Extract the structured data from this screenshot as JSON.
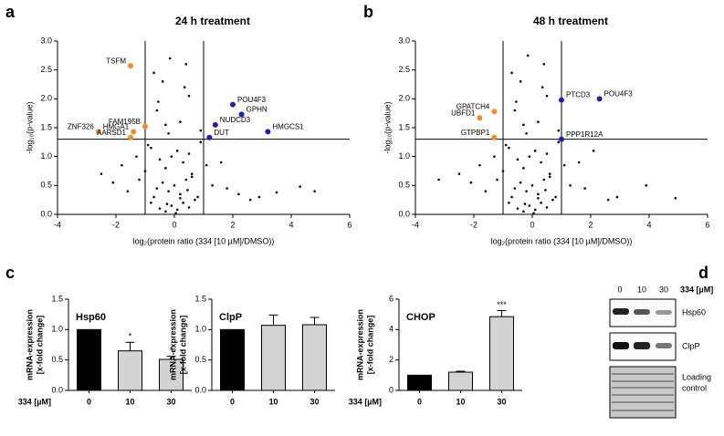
{
  "chart_data": [
    {
      "type": "scatter",
      "title": "24 h treatment",
      "xlabel": "log₂(protein ratio (334 [10 µM]/DMSO))",
      "ylabel": "-log₁₀(p-value)",
      "xlim": [
        -4,
        6
      ],
      "ylim": [
        0,
        3
      ],
      "xticks": [
        -4,
        -2,
        0,
        2,
        4,
        6
      ],
      "yticks": [
        {
          "value": 0,
          "label": "0.0"
        },
        0.5,
        {
          "value": 1,
          "label": "1.0"
        },
        1.5,
        {
          "value": 2,
          "label": "2.0"
        },
        2.5,
        {
          "value": 3,
          "label": "3.0"
        }
      ],
      "vlines": [
        -1,
        1
      ],
      "hline": 1.3,
      "series": [
        {
          "color": "#000000",
          "x": [
            -0.5,
            -0.3,
            -0.1,
            0.1,
            0.3,
            0.5,
            -0.7,
            0.7,
            -0.2,
            0.2,
            0,
            -0.4,
            0.4,
            -0.6,
            0.6,
            -0.8,
            0.8,
            -0.3,
            0.3,
            -0.1,
            0.1,
            -0.5,
            0.5,
            -1.2,
            1.3,
            -1.6,
            1.8,
            2.2,
            -2.1,
            2.6,
            3.5,
            4.3,
            4.8,
            -0.9,
            0.9,
            -0.2,
            0.2,
            -0.6,
            0.5,
            -0.4,
            0.4,
            -1.0,
            1.1,
            -0.3,
            -1.3,
            0.6,
            -0.7,
            0.35,
            -0.55,
            -0.15,
            0.05,
            -2.5,
            1.6,
            -1.8,
            2.9,
            0.9,
            -0.8,
            0.2,
            -0.25,
            0.45
          ],
          "values": [
            0.1,
            0.05,
            0.15,
            0.08,
            0.2,
            0.12,
            0.3,
            0.25,
            0.4,
            0.35,
            0.5,
            0.55,
            0.6,
            0.45,
            0.7,
            0.2,
            0.3,
            0.8,
            0.9,
            1.0,
            1.1,
            0.95,
            1.05,
            0.6,
            0.5,
            0.4,
            0.45,
            0.35,
            0.55,
            0.25,
            0.38,
            0.48,
            0.4,
            1.2,
            1.25,
            1.4,
            1.6,
            1.8,
            2.05,
            2.3,
            2.6,
            0.75,
            0.85,
            1.55,
            1.0,
            0.65,
            2.45,
            2.2,
            1.95,
            2.7,
            0.02,
            0.7,
            0.9,
            0.85,
            0.3,
            1.45,
            1.15,
            0.28,
            0.18,
            0.42
          ]
        },
        {
          "color": "#f28c28",
          "x": [
            -1.5,
            -1.0,
            -1.4,
            -2.6,
            -1.5
          ],
          "values": [
            2.57,
            1.52,
            1.43,
            1.43,
            1.33
          ],
          "labels": [
            "TSFM",
            "FAM195B",
            "HMGA1",
            "ZNF326",
            "AARSD1"
          ]
        },
        {
          "color": "#1f1fb4",
          "x": [
            2.0,
            2.3,
            1.4,
            1.2,
            3.2
          ],
          "values": [
            1.9,
            1.73,
            1.55,
            1.33,
            1.43
          ],
          "labels": [
            "POU4F3",
            "GPHN",
            "NUDCD3",
            "DUT",
            "HMGCS1"
          ]
        }
      ]
    },
    {
      "type": "scatter",
      "title": "48 h treatment",
      "xlabel": "log₂(protein ratio (334 [10 µM]/DMSO))",
      "ylabel": "-log₁₀(p-value)",
      "xlim": [
        -4,
        6
      ],
      "ylim": [
        0,
        3
      ],
      "xticks": [
        -4,
        -2,
        0,
        2,
        4,
        6
      ],
      "yticks": [
        {
          "value": 0,
          "label": "0.0"
        },
        0.5,
        {
          "value": 1,
          "label": "1.0"
        },
        1.5,
        {
          "value": 2,
          "label": "2.0"
        },
        2.5,
        {
          "value": 3,
          "label": "3.0"
        }
      ],
      "vlines": [
        -1,
        1
      ],
      "hline": 1.3,
      "series": [
        {
          "color": "#000000",
          "x": [
            -0.5,
            -0.3,
            -0.1,
            0.1,
            0.3,
            0.5,
            -0.7,
            0.7,
            -0.2,
            0.2,
            0,
            -0.4,
            0.4,
            -0.6,
            0.6,
            -0.8,
            0.8,
            -0.3,
            0.3,
            -0.1,
            0.1,
            -0.5,
            0.5,
            -1.2,
            1.3,
            -1.6,
            1.8,
            2.1,
            -2.1,
            2.6,
            3.9,
            4.9,
            -3.2,
            -0.9,
            0.9,
            -0.2,
            0.2,
            -0.6,
            0.5,
            -0.4,
            0.4,
            -1.0,
            1.1,
            -0.3,
            -1.3,
            0.6,
            -0.7,
            0.35,
            -0.55,
            -0.15,
            0.05,
            -2.5,
            1.6,
            -1.8,
            2.9,
            0.9,
            -0.8,
            0.2,
            -0.25,
            0.45
          ],
          "values": [
            0.1,
            0.05,
            0.15,
            0.08,
            0.2,
            0.12,
            0.3,
            0.25,
            0.4,
            0.35,
            0.5,
            0.55,
            0.6,
            0.45,
            0.7,
            0.2,
            0.3,
            0.8,
            0.9,
            1.0,
            1.1,
            0.95,
            1.05,
            0.6,
            0.5,
            0.4,
            0.45,
            1.1,
            0.55,
            0.25,
            0.5,
            0.28,
            0.6,
            1.2,
            1.25,
            1.4,
            1.6,
            1.8,
            2.05,
            2.3,
            2.6,
            0.75,
            0.85,
            1.55,
            1.0,
            0.65,
            2.45,
            2.2,
            1.95,
            2.75,
            0.02,
            0.7,
            0.9,
            0.85,
            0.3,
            1.45,
            1.15,
            0.28,
            0.18,
            0.42
          ]
        },
        {
          "color": "#f28c28",
          "x": [
            -1.3,
            -1.8,
            -1.3
          ],
          "values": [
            1.78,
            1.67,
            1.33
          ],
          "labels": [
            "GPATCH4",
            "UBFD1",
            "GTPBP1"
          ]
        },
        {
          "color": "#1f1fb4",
          "x": [
            1.0,
            2.3,
            1.0
          ],
          "values": [
            1.98,
            2.0,
            1.3
          ],
          "labels": [
            "PTCD3",
            "POU4F3",
            "PPP1R12A"
          ]
        }
      ]
    },
    {
      "type": "bar",
      "title": "Hsp60",
      "ylabel": [
        "mRNA-expression",
        "[x-fold change]"
      ],
      "xlabel": "334 [µM]",
      "categories": [
        "0",
        "10",
        "30"
      ],
      "values": [
        1.0,
        0.65,
        0.51
      ],
      "errors": [
        0,
        0.14,
        0.05
      ],
      "annotations": [
        null,
        "*",
        "*"
      ],
      "colors": [
        "#000000",
        "#d3d3d3",
        "#d3d3d3"
      ],
      "ylim": [
        0,
        1.5
      ],
      "yticks": [
        {
          "value": 0,
          "label": "0.0"
        },
        0.5,
        {
          "value": 1,
          "label": "1.0"
        },
        1.5
      ]
    },
    {
      "type": "bar",
      "title": "ClpP",
      "ylabel": [
        "mRNA-expression",
        "[x-fold change]"
      ],
      "categories": [
        "0",
        "10",
        "30"
      ],
      "values": [
        1.0,
        1.07,
        1.08
      ],
      "errors": [
        0,
        0.17,
        0.12
      ],
      "colors": [
        "#000000",
        "#d3d3d3",
        "#d3d3d3"
      ],
      "ylim": [
        0,
        1.5
      ],
      "yticks": [
        {
          "value": 0,
          "label": "0.0"
        },
        0.5,
        {
          "value": 1,
          "label": "1.0"
        },
        1.5
      ]
    },
    {
      "type": "bar",
      "title": "CHOP",
      "ylabel": [
        "mRNA-expression",
        "[x-fold change]"
      ],
      "xlabel": "334 [µM]",
      "categories": [
        "0",
        "10",
        "30"
      ],
      "values": [
        1.0,
        1.2,
        4.85
      ],
      "errors": [
        0,
        0.06,
        0.4
      ],
      "annotations": [
        null,
        null,
        "***"
      ],
      "colors": [
        "#000000",
        "#d3d3d3",
        "#d3d3d3"
      ],
      "ylim": [
        0,
        6
      ],
      "yticks": [
        0,
        2,
        4,
        6
      ]
    }
  ],
  "panel_labels": [
    "a",
    "b",
    "c",
    "d"
  ],
  "blot": {
    "concentrations": [
      "0",
      "10",
      "30"
    ],
    "unit": "334 [µM]",
    "bands": [
      "Hsp60",
      "ClpP"
    ],
    "loading": [
      "Loading",
      "control"
    ]
  }
}
